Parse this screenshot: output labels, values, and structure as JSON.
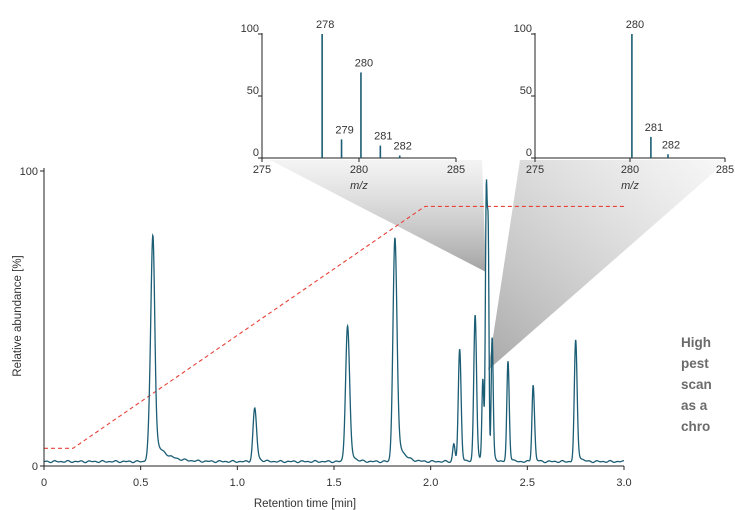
{
  "colors": {
    "trace": "#1b5d74",
    "gradient": "#e8423a",
    "axis": "#222222",
    "text": "#333333",
    "caption": "#6b6b6b"
  },
  "caption": {
    "lines": [
      "High",
      "pest",
      "scan",
      "as a",
      "chro"
    ]
  },
  "chart_data": [
    {
      "type": "line",
      "id": "chromatogram",
      "xlabel": "Retention time [min]",
      "ylabel": "Relative abundance [%]",
      "xlim": [
        0,
        3.0
      ],
      "ylim": [
        0,
        100
      ],
      "xticks": [
        0,
        0.5,
        1.0,
        1.5,
        2.0,
        2.5,
        3.0
      ],
      "xtick_labels": [
        "0",
        "0.5",
        "1.0",
        "1.5",
        "2.0",
        "2.5",
        "3.0"
      ],
      "yticks": [
        0,
        100
      ],
      "ytick_labels": [
        "0",
        "100"
      ],
      "baseline": 1.5,
      "peaks": [
        {
          "rt": 0.56,
          "height": 49,
          "width": 0.012,
          "tail": 0.06
        },
        {
          "rt": 0.565,
          "height": 30,
          "width": 0.008,
          "tail": 0.0
        },
        {
          "rt": 1.09,
          "height": 18,
          "width": 0.009,
          "tail": 0.02
        },
        {
          "rt": 1.57,
          "height": 46,
          "width": 0.01,
          "tail": 0.02
        },
        {
          "rt": 1.815,
          "height": 76,
          "width": 0.01,
          "tail": 0.03
        },
        {
          "rt": 2.12,
          "height": 6,
          "width": 0.006,
          "tail": 0.0
        },
        {
          "rt": 2.15,
          "height": 38,
          "width": 0.007,
          "tail": 0.01
        },
        {
          "rt": 2.23,
          "height": 50,
          "width": 0.007,
          "tail": 0.01
        },
        {
          "rt": 2.27,
          "height": 28,
          "width": 0.005,
          "tail": 0.0
        },
        {
          "rt": 2.288,
          "height": 92,
          "width": 0.005,
          "tail": 0.0
        },
        {
          "rt": 2.298,
          "height": 68,
          "width": 0.004,
          "tail": 0.0
        },
        {
          "rt": 2.318,
          "height": 42,
          "width": 0.005,
          "tail": 0.01
        },
        {
          "rt": 2.4,
          "height": 34,
          "width": 0.006,
          "tail": 0.01
        },
        {
          "rt": 2.53,
          "height": 26,
          "width": 0.006,
          "tail": 0.01
        },
        {
          "rt": 2.54,
          "height": 2,
          "width": 0.004,
          "tail": 0.0
        },
        {
          "rt": 2.75,
          "height": 41,
          "width": 0.007,
          "tail": 0.015
        }
      ],
      "gradient_profile": {
        "x": [
          0,
          0.15,
          1.97,
          2.3,
          3.0
        ],
        "y": [
          6,
          6,
          88,
          88,
          88
        ]
      }
    },
    {
      "type": "bar",
      "id": "mass-spectrum-left",
      "xlabel": "m/z",
      "xlim": [
        275,
        285
      ],
      "ylim": [
        0,
        100
      ],
      "xticks": [
        275,
        280,
        285
      ],
      "xtick_labels": [
        "275",
        "280",
        "285"
      ],
      "yticks": [
        0,
        50,
        100
      ],
      "ytick_labels": [
        "0",
        "50",
        "100"
      ],
      "peaks": [
        {
          "mz": 278.1,
          "value": 100,
          "label": "278"
        },
        {
          "mz": 279.1,
          "value": 15,
          "label": "279"
        },
        {
          "mz": 280.1,
          "value": 69,
          "label": "280"
        },
        {
          "mz": 281.1,
          "value": 10,
          "label": "281"
        },
        {
          "mz": 282.1,
          "value": 2,
          "label": "282"
        }
      ]
    },
    {
      "type": "bar",
      "id": "mass-spectrum-right",
      "xlabel": "m/z",
      "xlim": [
        275,
        285
      ],
      "ylim": [
        0,
        100
      ],
      "xticks": [
        275,
        280,
        285
      ],
      "xtick_labels": [
        "275",
        "280",
        "285"
      ],
      "yticks": [
        0,
        50,
        100
      ],
      "ytick_labels": [
        "0",
        "50",
        "100"
      ],
      "peaks": [
        {
          "mz": 280.1,
          "value": 100,
          "label": "280"
        },
        {
          "mz": 281.1,
          "value": 17,
          "label": "281"
        },
        {
          "mz": 282.0,
          "value": 3,
          "label": "282"
        }
      ]
    }
  ]
}
